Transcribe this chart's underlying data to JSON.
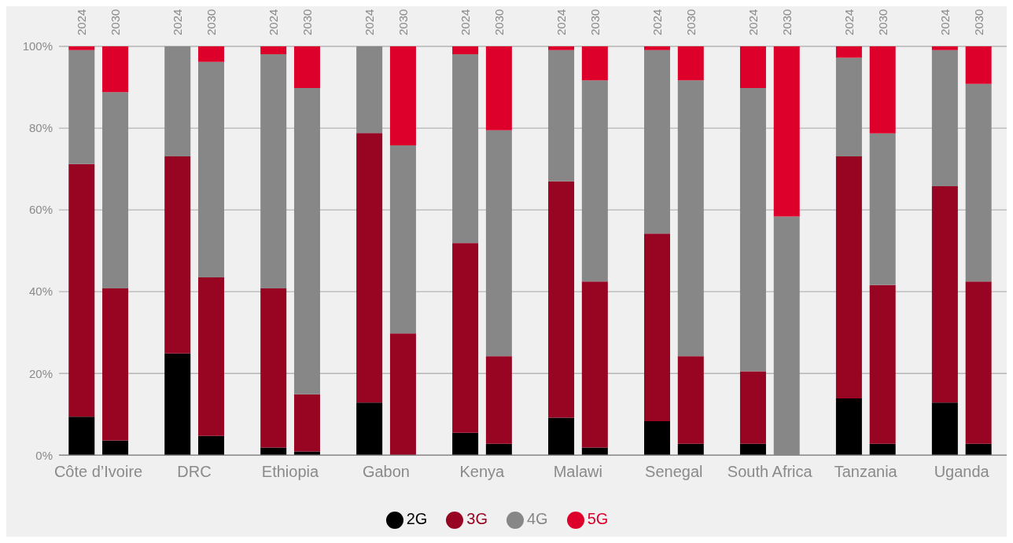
{
  "chart_data": {
    "type": "bar",
    "stacked": true,
    "categories": [
      "2024",
      "2030",
      "2024",
      "2030",
      "2024",
      "2030",
      "2024",
      "2030",
      "2024",
      "2030",
      "2024",
      "2030",
      "2024",
      "2030",
      "2024",
      "2030",
      "2024",
      "2030",
      "2024",
      "2030"
    ],
    "annotations": [
      "Côte d’Ivoire",
      "DRC",
      "Ethiopia",
      "Gabon",
      "Kenya",
      "Malawi",
      "Senegal",
      "South Africa",
      "Tanzania",
      "Uganda"
    ],
    "series": [
      {
        "name": "2G",
        "color": "#000000",
        "values": [
          9.4,
          3.6,
          24.9,
          4.7,
          1.9,
          0.9,
          12.9,
          0,
          5.5,
          2.8,
          9.2,
          1.9,
          8.3,
          2.8,
          2.8,
          0,
          13.9,
          2.8,
          12.9,
          2.8
        ]
      },
      {
        "name": "3G",
        "color": "#970523",
        "values": [
          61.8,
          37.2,
          48.2,
          38.8,
          38.9,
          14.0,
          65.9,
          29.8,
          46.4,
          21.4,
          57.8,
          40.6,
          45.9,
          21.4,
          17.7,
          0,
          59.2,
          38.8,
          52.9,
          39.7
        ]
      },
      {
        "name": "4G",
        "color": "#878787",
        "values": [
          27.9,
          48.0,
          26.9,
          52.7,
          57.3,
          74.9,
          21.2,
          46.0,
          46.2,
          55.3,
          32.1,
          49.2,
          44.9,
          67.5,
          69.3,
          58.4,
          24.1,
          37.1,
          33.3,
          48.3
        ]
      },
      {
        "name": "5G",
        "color": "#dc002a",
        "values": [
          0.9,
          11.2,
          0,
          3.8,
          1.9,
          10.2,
          0,
          24.2,
          1.9,
          20.5,
          0.9,
          8.3,
          0.9,
          8.3,
          10.2,
          41.6,
          2.8,
          21.3,
          0.9,
          9.2
        ]
      }
    ],
    "ylim": [
      0,
      100
    ],
    "yticks": [
      {
        "value": 0,
        "label": "0%"
      },
      {
        "value": 20,
        "label": "20%"
      },
      {
        "value": 40,
        "label": "40%"
      },
      {
        "value": 60,
        "label": "60%"
      },
      {
        "value": 80,
        "label": "80%"
      },
      {
        "value": 100,
        "label": "100%"
      }
    ],
    "grid": "y",
    "legend": "bottom"
  }
}
